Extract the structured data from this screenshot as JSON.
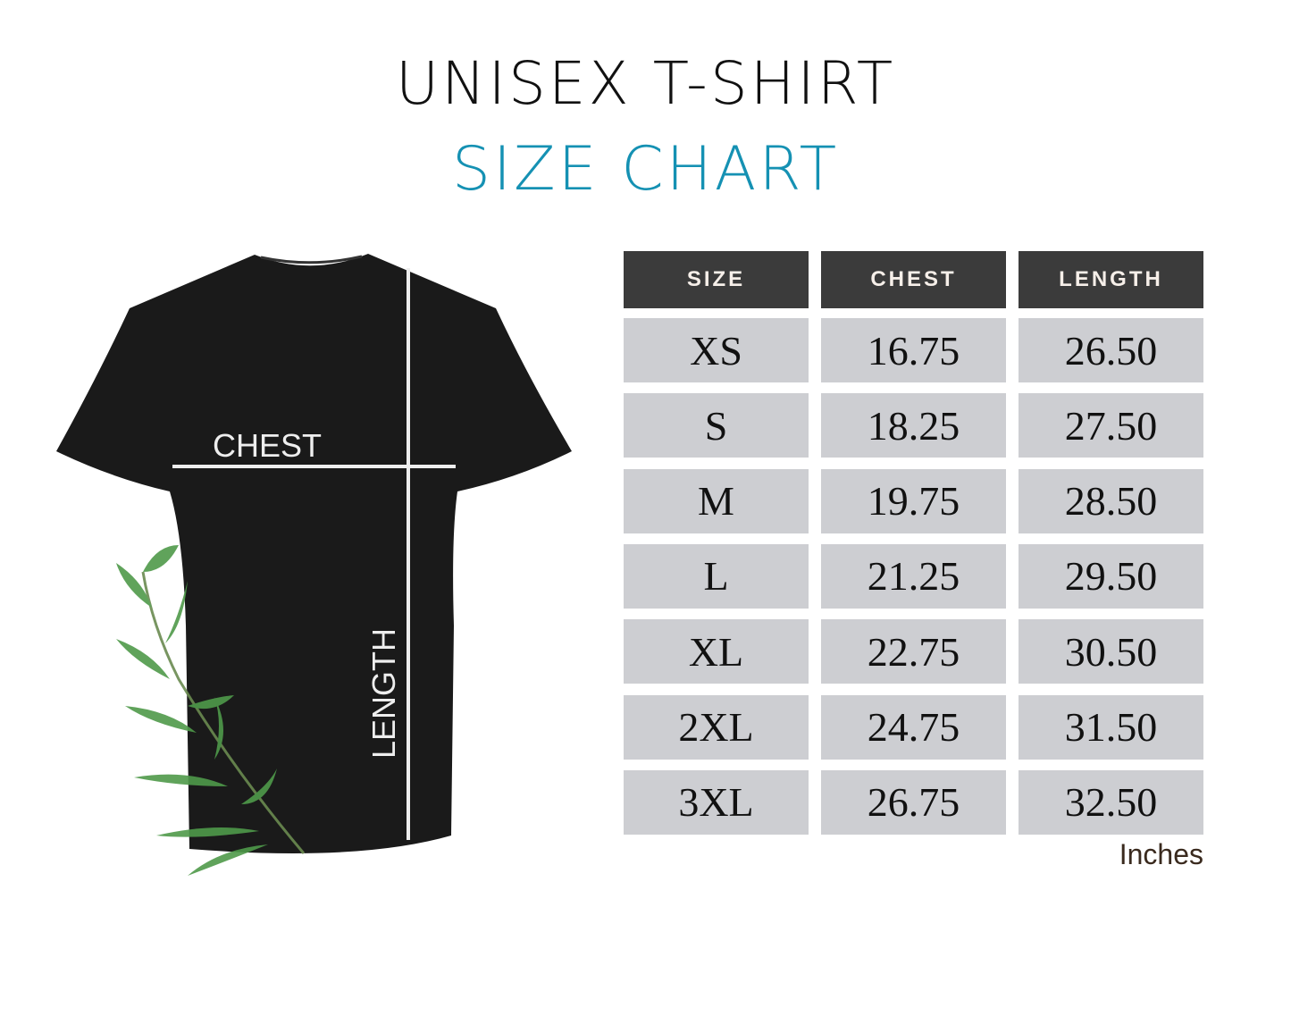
{
  "title": "UNISEX T-SHIRT",
  "subtitle": "SIZE CHART",
  "shirt_labels": {
    "chest": "CHEST",
    "length": "LENGTH"
  },
  "table": {
    "headers": [
      "SIZE",
      "CHEST",
      "LENGTH"
    ],
    "rows": [
      [
        "XS",
        "16.75",
        "26.50"
      ],
      [
        "S",
        "18.25",
        "27.50"
      ],
      [
        "M",
        "19.75",
        "28.50"
      ],
      [
        "L",
        "21.25",
        "29.50"
      ],
      [
        "XL",
        "22.75",
        "30.50"
      ],
      [
        "2XL",
        "24.75",
        "31.50"
      ],
      [
        "3XL",
        "26.75",
        "32.50"
      ]
    ],
    "units": "Inches"
  },
  "colors": {
    "accent": "#1591b3",
    "header_bg": "#3b3b3b",
    "cell_bg": "#cdced2",
    "shirt": "#1a1a1a"
  },
  "icons": [
    "t-shirt-illustration",
    "leaf-branch-illustration"
  ]
}
